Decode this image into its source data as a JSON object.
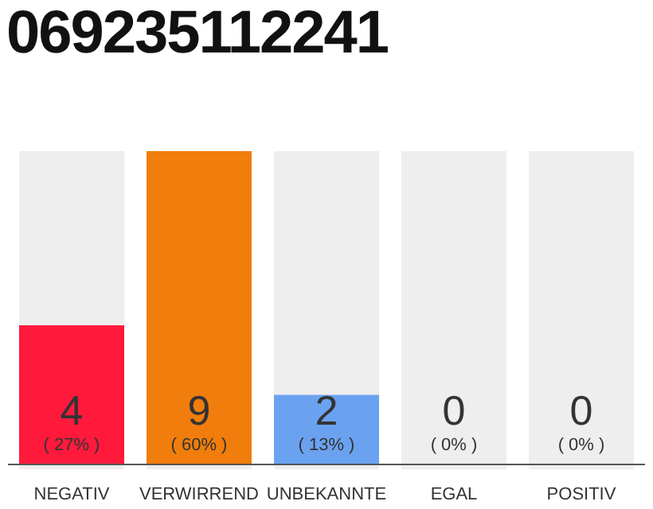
{
  "chart_data": {
    "type": "bar",
    "title": "069235112241",
    "categories": [
      "NEGATIV",
      "VERWIRREND",
      "UNBEKANNTE",
      "EGAL",
      "POSITIV"
    ],
    "values": [
      4,
      9,
      2,
      0,
      0
    ],
    "colors": [
      "#ff1a3c",
      "#f07d0c",
      "#6aa2f0",
      "#b0b0b0",
      "#b0b0b0"
    ],
    "value_labels": [
      "4 ( 27% )",
      "9 ( 60% )",
      "2 ( 13% )",
      "0 ( 0% )",
      "0 ( 0% )"
    ]
  }
}
